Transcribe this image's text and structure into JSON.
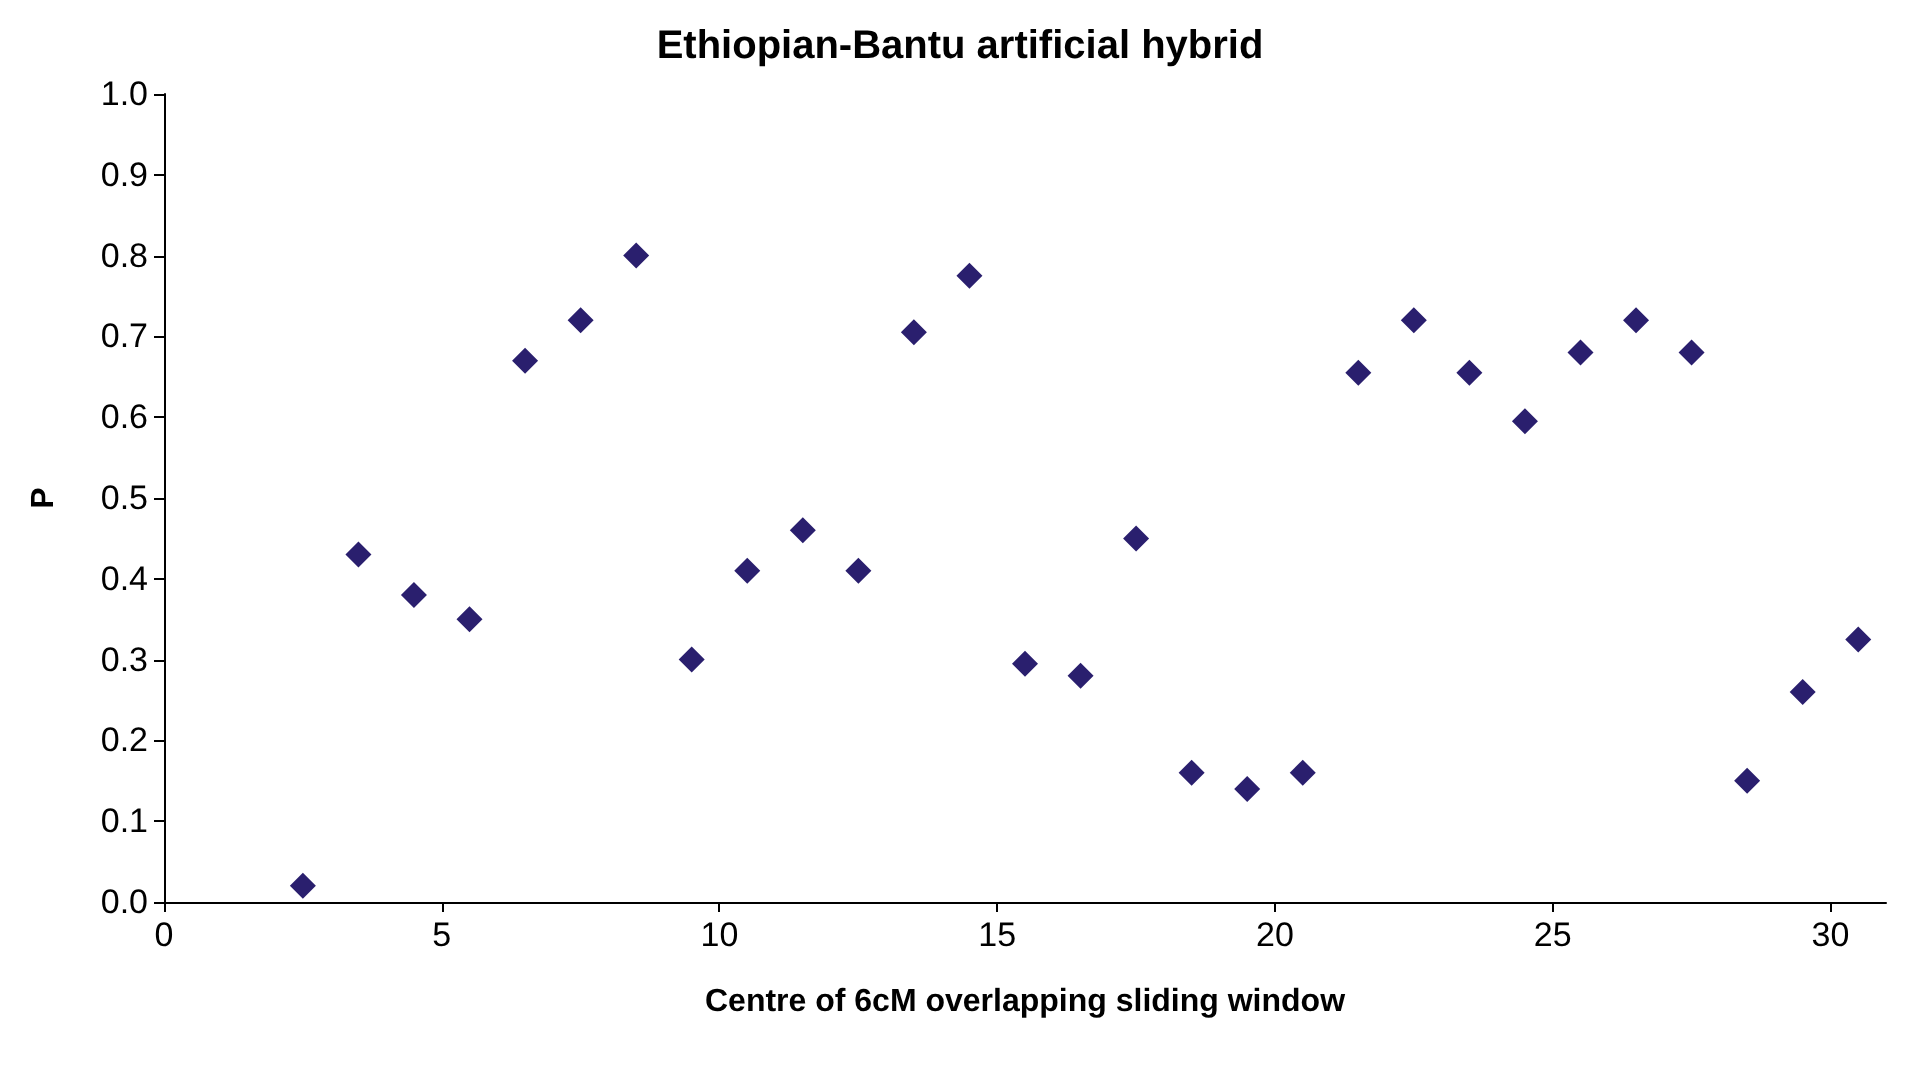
{
  "chart_data": {
    "type": "scatter",
    "title": "Ethiopian-Bantu artificial hybrid",
    "xlabel": "Centre of 6cM overlapping sliding window",
    "ylabel": "P",
    "x": [
      2.5,
      3.5,
      4.5,
      5.5,
      6.5,
      7.5,
      8.5,
      9.5,
      10.5,
      11.5,
      12.5,
      13.5,
      14.5,
      15.5,
      16.5,
      17.5,
      18.5,
      19.5,
      20.5,
      21.5,
      22.5,
      23.5,
      24.5,
      25.5,
      26.5,
      27.5,
      28.5,
      29.5,
      30.5
    ],
    "values": [
      0.02,
      0.43,
      0.38,
      0.35,
      0.67,
      0.72,
      0.8,
      0.3,
      0.41,
      0.46,
      0.41,
      0.705,
      0.775,
      0.295,
      0.28,
      0.45,
      0.16,
      0.14,
      0.16,
      0.655,
      0.72,
      0.655,
      0.595,
      0.68,
      0.72,
      0.68,
      0.15,
      0.26,
      0.325
    ],
    "color": "#2a1f6e",
    "marker": "diamond",
    "grid": false,
    "xlim": [
      0,
      31
    ],
    "xticks": [
      0,
      5,
      10,
      15,
      20,
      25,
      30
    ],
    "ylim": [
      0,
      1
    ],
    "yticks": [
      {
        "value": 0,
        "label": "0.0"
      },
      {
        "value": 0.1,
        "label": "0.1"
      },
      {
        "value": 0.2,
        "label": "0.2"
      },
      {
        "value": 0.3,
        "label": "0.3"
      },
      {
        "value": 0.4,
        "label": "0.4"
      },
      {
        "value": 0.5,
        "label": "0.5"
      },
      {
        "value": 0.6,
        "label": "0.6"
      },
      {
        "value": 0.7,
        "label": "0.7"
      },
      {
        "value": 0.8,
        "label": "0.8"
      },
      {
        "value": 0.9,
        "label": "0.9"
      },
      {
        "value": 1,
        "label": "1.0"
      }
    ]
  }
}
